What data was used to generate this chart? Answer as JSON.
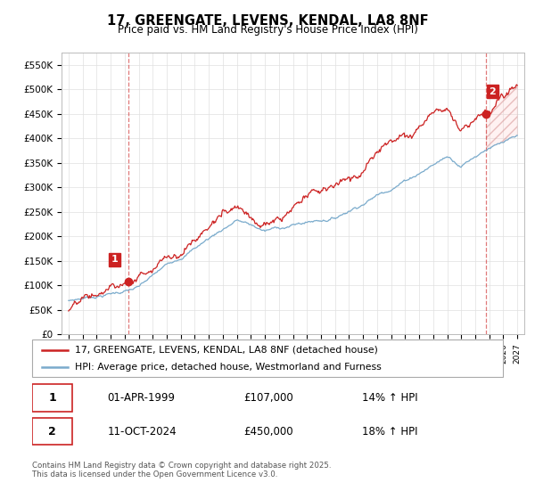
{
  "title_line1": "17, GREENGATE, LEVENS, KENDAL, LA8 8NF",
  "title_line2": "Price paid vs. HM Land Registry's House Price Index (HPI)",
  "ylim": [
    0,
    575000
  ],
  "yticks": [
    0,
    50000,
    100000,
    150000,
    200000,
    250000,
    300000,
    350000,
    400000,
    450000,
    500000,
    550000
  ],
  "ytick_labels": [
    "£0",
    "£50K",
    "£100K",
    "£150K",
    "£200K",
    "£250K",
    "£300K",
    "£350K",
    "£400K",
    "£450K",
    "£500K",
    "£550K"
  ],
  "hpi_color": "#7aabcc",
  "price_color": "#cc2222",
  "marker1_x": 1999.25,
  "marker1_y": 107000,
  "marker2_x": 2024.79,
  "marker2_y": 450000,
  "legend_line1": "17, GREENGATE, LEVENS, KENDAL, LA8 8NF (detached house)",
  "legend_line2": "HPI: Average price, detached house, Westmorland and Furness",
  "note1_date": "01-APR-1999",
  "note1_price": "£107,000",
  "note1_hpi": "14% ↑ HPI",
  "note2_date": "11-OCT-2024",
  "note2_price": "£450,000",
  "note2_hpi": "18% ↑ HPI",
  "footer": "Contains HM Land Registry data © Crown copyright and database right 2025.\nThis data is licensed under the Open Government Licence v3.0.",
  "grid_color": "#e0e0e0",
  "xlim_left": 1994.5,
  "xlim_right": 2027.5,
  "hatch_start": 2024.79
}
